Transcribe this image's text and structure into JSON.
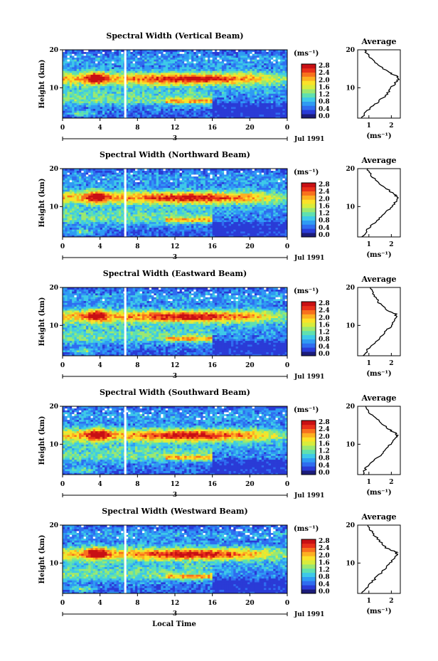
{
  "figure": {
    "x_axis_label": "Local Time",
    "date_label": "Jul 1991",
    "panel_ylabel": "Height (km)",
    "unit_label": "(ms⁻¹)",
    "average_title": "Average"
  },
  "colors": {
    "scale": [
      "#1c1c7a",
      "#2a3bd6",
      "#2f6df0",
      "#2f9bf3",
      "#3ec9e8",
      "#5fe0b0",
      "#9be870",
      "#d8ec3c",
      "#fbe228",
      "#fdb021",
      "#f8711d",
      "#e8301a",
      "#c81014"
    ],
    "gap": "#ffffff"
  },
  "chart_data": [
    {
      "type": "heatmap",
      "title": "Spectral Width (Vertical Beam)",
      "xlabel": "",
      "ylabel": "Height (km)",
      "xlim": [
        0,
        24
      ],
      "ylim": [
        2,
        20
      ],
      "xticks": [
        "0",
        "4",
        "8",
        "12",
        "16",
        "20",
        "0"
      ],
      "yticks": [
        "10",
        "20"
      ],
      "colorbar": {
        "ticks": [
          "2.8",
          "2.4",
          "2.0",
          "1.6",
          "1.2",
          "0.8",
          "0.4",
          "0.0"
        ],
        "range": [
          0,
          3
        ],
        "unit": "(ms⁻¹)"
      },
      "date_marker": "3",
      "data_gap_hour": 6.7,
      "features": {
        "max_layer_km": 12.5,
        "lower_layer_km": 6.5,
        "lower_layer_hours": [
          11,
          16
        ]
      },
      "average_profile": {
        "xticks": [
          "1",
          "2"
        ],
        "xlim": [
          0.5,
          2.4
        ],
        "yticks": [
          "10",
          "20"
        ],
        "height_km": [
          2,
          4,
          6,
          8,
          10,
          12,
          13,
          14,
          16,
          18,
          20
        ],
        "width_ms": [
          0.65,
          0.95,
          1.35,
          1.75,
          2.0,
          2.3,
          2.25,
          1.9,
          1.4,
          1.05,
          0.8
        ]
      }
    },
    {
      "type": "heatmap",
      "title": "Spectral Width (Northward Beam)",
      "xlabel": "",
      "ylabel": "Height (km)",
      "xlim": [
        0,
        24
      ],
      "ylim": [
        2,
        20
      ],
      "xticks": [
        "0",
        "4",
        "8",
        "12",
        "16",
        "20",
        "0"
      ],
      "yticks": [
        "10",
        "20"
      ],
      "colorbar": {
        "ticks": [
          "2.8",
          "2.4",
          "2.0",
          "1.6",
          "1.2",
          "0.8",
          "0.4",
          "0.0"
        ],
        "range": [
          0,
          3
        ],
        "unit": "(ms⁻¹)"
      },
      "date_marker": "3",
      "data_gap_hour": 6.7,
      "features": {
        "max_layer_km": 12.5,
        "lower_layer_km": 6.5,
        "lower_layer_hours": [
          11,
          16
        ]
      },
      "average_profile": {
        "xticks": [
          "1",
          "2"
        ],
        "xlim": [
          0.5,
          2.4
        ],
        "yticks": [
          "10",
          "20"
        ],
        "height_km": [
          2,
          4,
          6,
          8,
          10,
          12,
          13,
          14,
          16,
          18,
          20
        ],
        "width_ms": [
          0.7,
          0.95,
          1.3,
          1.7,
          2.0,
          2.3,
          2.2,
          1.95,
          1.5,
          1.1,
          0.95
        ]
      }
    },
    {
      "type": "heatmap",
      "title": "Spectral Width (Eastward Beam)",
      "xlabel": "",
      "ylabel": "Height (km)",
      "xlim": [
        0,
        24
      ],
      "ylim": [
        2,
        20
      ],
      "xticks": [
        "0",
        "4",
        "8",
        "12",
        "16",
        "20",
        "0"
      ],
      "yticks": [
        "10",
        "20"
      ],
      "colorbar": {
        "ticks": [
          "2.8",
          "2.4",
          "2.0",
          "1.6",
          "1.2",
          "0.8",
          "0.4",
          "0.0"
        ],
        "range": [
          0,
          3
        ],
        "unit": "(ms⁻¹)"
      },
      "date_marker": "3",
      "data_gap_hour": 6.7,
      "features": {
        "max_layer_km": 12.5,
        "lower_layer_km": 6.5,
        "lower_layer_hours": [
          11,
          16
        ]
      },
      "average_profile": {
        "xticks": [
          "1",
          "2"
        ],
        "xlim": [
          0.5,
          2.4
        ],
        "yticks": [
          "10",
          "20"
        ],
        "height_km": [
          2,
          4,
          6,
          8,
          10,
          12,
          13,
          14,
          16,
          18,
          20
        ],
        "width_ms": [
          0.75,
          1.0,
          1.35,
          1.7,
          2.0,
          2.25,
          2.2,
          1.8,
          1.45,
          1.2,
          1.05
        ]
      }
    },
    {
      "type": "heatmap",
      "title": "Spectral Width (Southward Beam)",
      "xlabel": "",
      "ylabel": "Height (km)",
      "xlim": [
        0,
        24
      ],
      "ylim": [
        2,
        20
      ],
      "xticks": [
        "0",
        "4",
        "8",
        "12",
        "16",
        "20",
        "0"
      ],
      "yticks": [
        "10",
        "20"
      ],
      "colorbar": {
        "ticks": [
          "2.8",
          "2.4",
          "2.0",
          "1.6",
          "1.2",
          "0.8",
          "0.4",
          "0.0"
        ],
        "range": [
          0,
          3
        ],
        "unit": "(ms⁻¹)"
      },
      "date_marker": "3",
      "data_gap_hour": 6.7,
      "features": {
        "max_layer_km": 12.5,
        "lower_layer_km": 6.5,
        "lower_layer_hours": [
          11,
          16
        ]
      },
      "average_profile": {
        "xticks": [
          "1",
          "2"
        ],
        "xlim": [
          0.5,
          2.4
        ],
        "yticks": [
          "10",
          "20"
        ],
        "height_km": [
          2,
          4,
          6,
          8,
          10,
          12,
          13,
          14,
          16,
          18,
          20
        ],
        "width_ms": [
          0.7,
          0.9,
          1.3,
          1.7,
          1.95,
          2.25,
          2.2,
          1.85,
          1.5,
          1.05,
          0.85
        ]
      }
    },
    {
      "type": "heatmap",
      "title": "Spectral Width (Westward Beam)",
      "xlabel": "Local Time",
      "ylabel": "Height (km)",
      "xlim": [
        0,
        24
      ],
      "ylim": [
        2,
        20
      ],
      "xticks": [
        "0",
        "4",
        "8",
        "12",
        "16",
        "20",
        "0"
      ],
      "yticks": [
        "10",
        "20"
      ],
      "colorbar": {
        "ticks": [
          "2.8",
          "2.4",
          "2.0",
          "1.6",
          "1.2",
          "0.8",
          "0.4",
          "0.0"
        ],
        "range": [
          0,
          3
        ],
        "unit": "(ms⁻¹)"
      },
      "date_marker": "3",
      "data_gap_hour": 6.7,
      "features": {
        "max_layer_km": 12.5,
        "lower_layer_km": 6.5,
        "lower_layer_hours": [
          11,
          16
        ]
      },
      "average_profile": {
        "xticks": [
          "1",
          "2"
        ],
        "xlim": [
          0.5,
          2.4
        ],
        "yticks": [
          "10",
          "20"
        ],
        "height_km": [
          2,
          4,
          6,
          8,
          10,
          12,
          13,
          14,
          16,
          18,
          20
        ],
        "width_ms": [
          0.7,
          0.95,
          1.3,
          1.65,
          1.95,
          2.25,
          2.2,
          1.75,
          1.45,
          1.15,
          0.95
        ]
      }
    }
  ]
}
